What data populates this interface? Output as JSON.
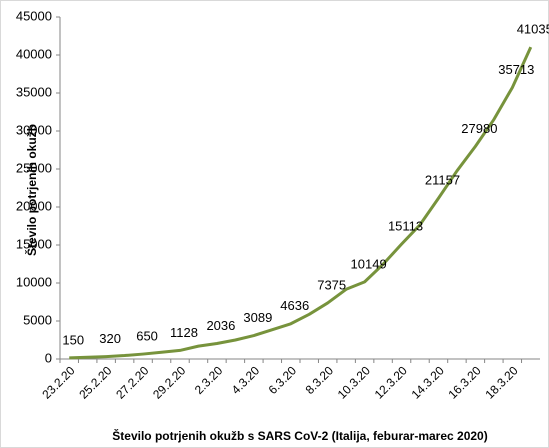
{
  "chart_data": {
    "type": "line",
    "x_label": "Število potrjenih okužb s SARS CoV-2 (Italija, feburar-marec 2020)",
    "y_label": "Število potrjenih okužb",
    "categories": [
      "23.2.20",
      null,
      "25.2.20",
      null,
      "27.2.20",
      null,
      "29.2.20",
      null,
      "2.3.20",
      null,
      "4.3.20",
      null,
      "6.3.20",
      null,
      "8.3.20",
      null,
      "10.3.20",
      null,
      "12.3.20",
      null,
      "14.3.20",
      null,
      "16.3.20",
      null,
      "18.3.20",
      null
    ],
    "series": [
      {
        "name": "Število potrjenih okužb",
        "color": "#77933c",
        "values": [
          150,
          229,
          320,
          453,
          650,
          888,
          1128,
          1694,
          2036,
          2502,
          3089,
          3858,
          4636,
          5883,
          7375,
          9172,
          10149,
          12462,
          15113,
          17660,
          21157,
          24747,
          27980,
          31506,
          35713,
          41035
        ],
        "value_labels": [
          "150",
          null,
          "320",
          null,
          "650",
          null,
          "1128",
          null,
          "2036",
          null,
          "3089",
          null,
          "4636",
          null,
          "7375",
          null,
          "10149",
          null,
          "15113",
          null,
          "21157",
          null,
          "27980",
          null,
          "35713",
          "41035"
        ]
      }
    ],
    "ylim": [
      0,
      45000
    ],
    "yticks": [
      0,
      5000,
      10000,
      15000,
      20000,
      25000,
      30000,
      35000,
      40000,
      45000
    ],
    "grid": false
  }
}
